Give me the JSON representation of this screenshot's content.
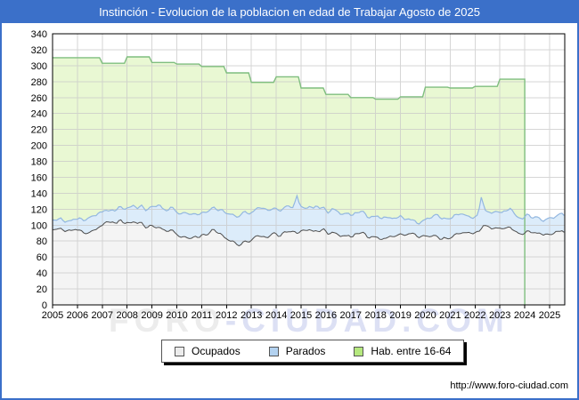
{
  "header": {
    "title": "Instinción - Evolucion de la poblacion en edad de Trabajar Agosto de 2025",
    "bg_color": "#3b70c9",
    "text_color": "#ffffff"
  },
  "chart_data": {
    "type": "area",
    "title": "Instinción - Evolucion de la poblacion en edad de Trabajar Agosto de 2025",
    "xlabel": "",
    "ylabel": "",
    "x": {
      "years": [
        2005,
        2006,
        2007,
        2008,
        2009,
        2010,
        2011,
        2012,
        2013,
        2014,
        2015,
        2016,
        2017,
        2018,
        2019,
        2020,
        2021,
        2022,
        2023,
        2024,
        2025
      ],
      "data_start": "2005-01",
      "data_end": "2025-08"
    },
    "y_axis": {
      "min": 0,
      "max": 340,
      "tick_step": 20,
      "ticks": [
        0,
        20,
        40,
        60,
        80,
        100,
        120,
        140,
        160,
        180,
        200,
        220,
        240,
        260,
        280,
        300,
        320,
        340
      ]
    },
    "grid": true,
    "legend_position": "bottom-center",
    "series": [
      {
        "name": "Ocupados",
        "kind": "monthly_area",
        "line_color": "#4d4d4d",
        "fill_color": "#f4f4f4",
        "yearly_avg": [
          94,
          92,
          105,
          102,
          96,
          83,
          92,
          77,
          85,
          90,
          95,
          88,
          87,
          85,
          90,
          84,
          88,
          97,
          94,
          90,
          91
        ]
      },
      {
        "name": "Parados",
        "kind": "monthly_area_stacked_on_ocupados",
        "line_color": "#93b7e0",
        "fill_color": "#dcecfa",
        "yearly_avg": [
          12,
          18,
          15,
          20,
          28,
          29,
          28,
          37,
          34,
          32,
          30,
          28,
          26,
          26,
          17,
          26,
          25,
          18,
          23,
          18,
          21
        ]
      },
      {
        "name": "Hab. entre 16-64",
        "kind": "annual_step",
        "line_color": "#7fbe7f",
        "fill_color": "#e9f8d3",
        "yearly": [
          310,
          310,
          303,
          311,
          304,
          302,
          299,
          291,
          279,
          286,
          272,
          264,
          260,
          258,
          261,
          273,
          272,
          274,
          283,
          null,
          null
        ],
        "ends_at": "2024-01"
      }
    ],
    "notable_peaks": [
      {
        "series": "Ocupados+Parados",
        "time": "2014-11",
        "value": 137
      },
      {
        "series": "Ocupados+Parados",
        "time": "2022-04",
        "value": 135
      }
    ]
  },
  "legend": {
    "items": [
      {
        "label": "Ocupados",
        "swatch_fill": "#ececec",
        "swatch_border": "#555555"
      },
      {
        "label": "Parados",
        "swatch_fill": "#b3d2f0",
        "swatch_border": "#555555"
      },
      {
        "label": "Hab. entre 16-64",
        "swatch_fill": "#b5e87e",
        "swatch_border": "#555555"
      }
    ]
  },
  "watermark": {
    "part1": "FORO",
    "part2": "-CIUDAD.COM"
  },
  "footer": {
    "url": "http://www.foro-ciudad.com"
  }
}
